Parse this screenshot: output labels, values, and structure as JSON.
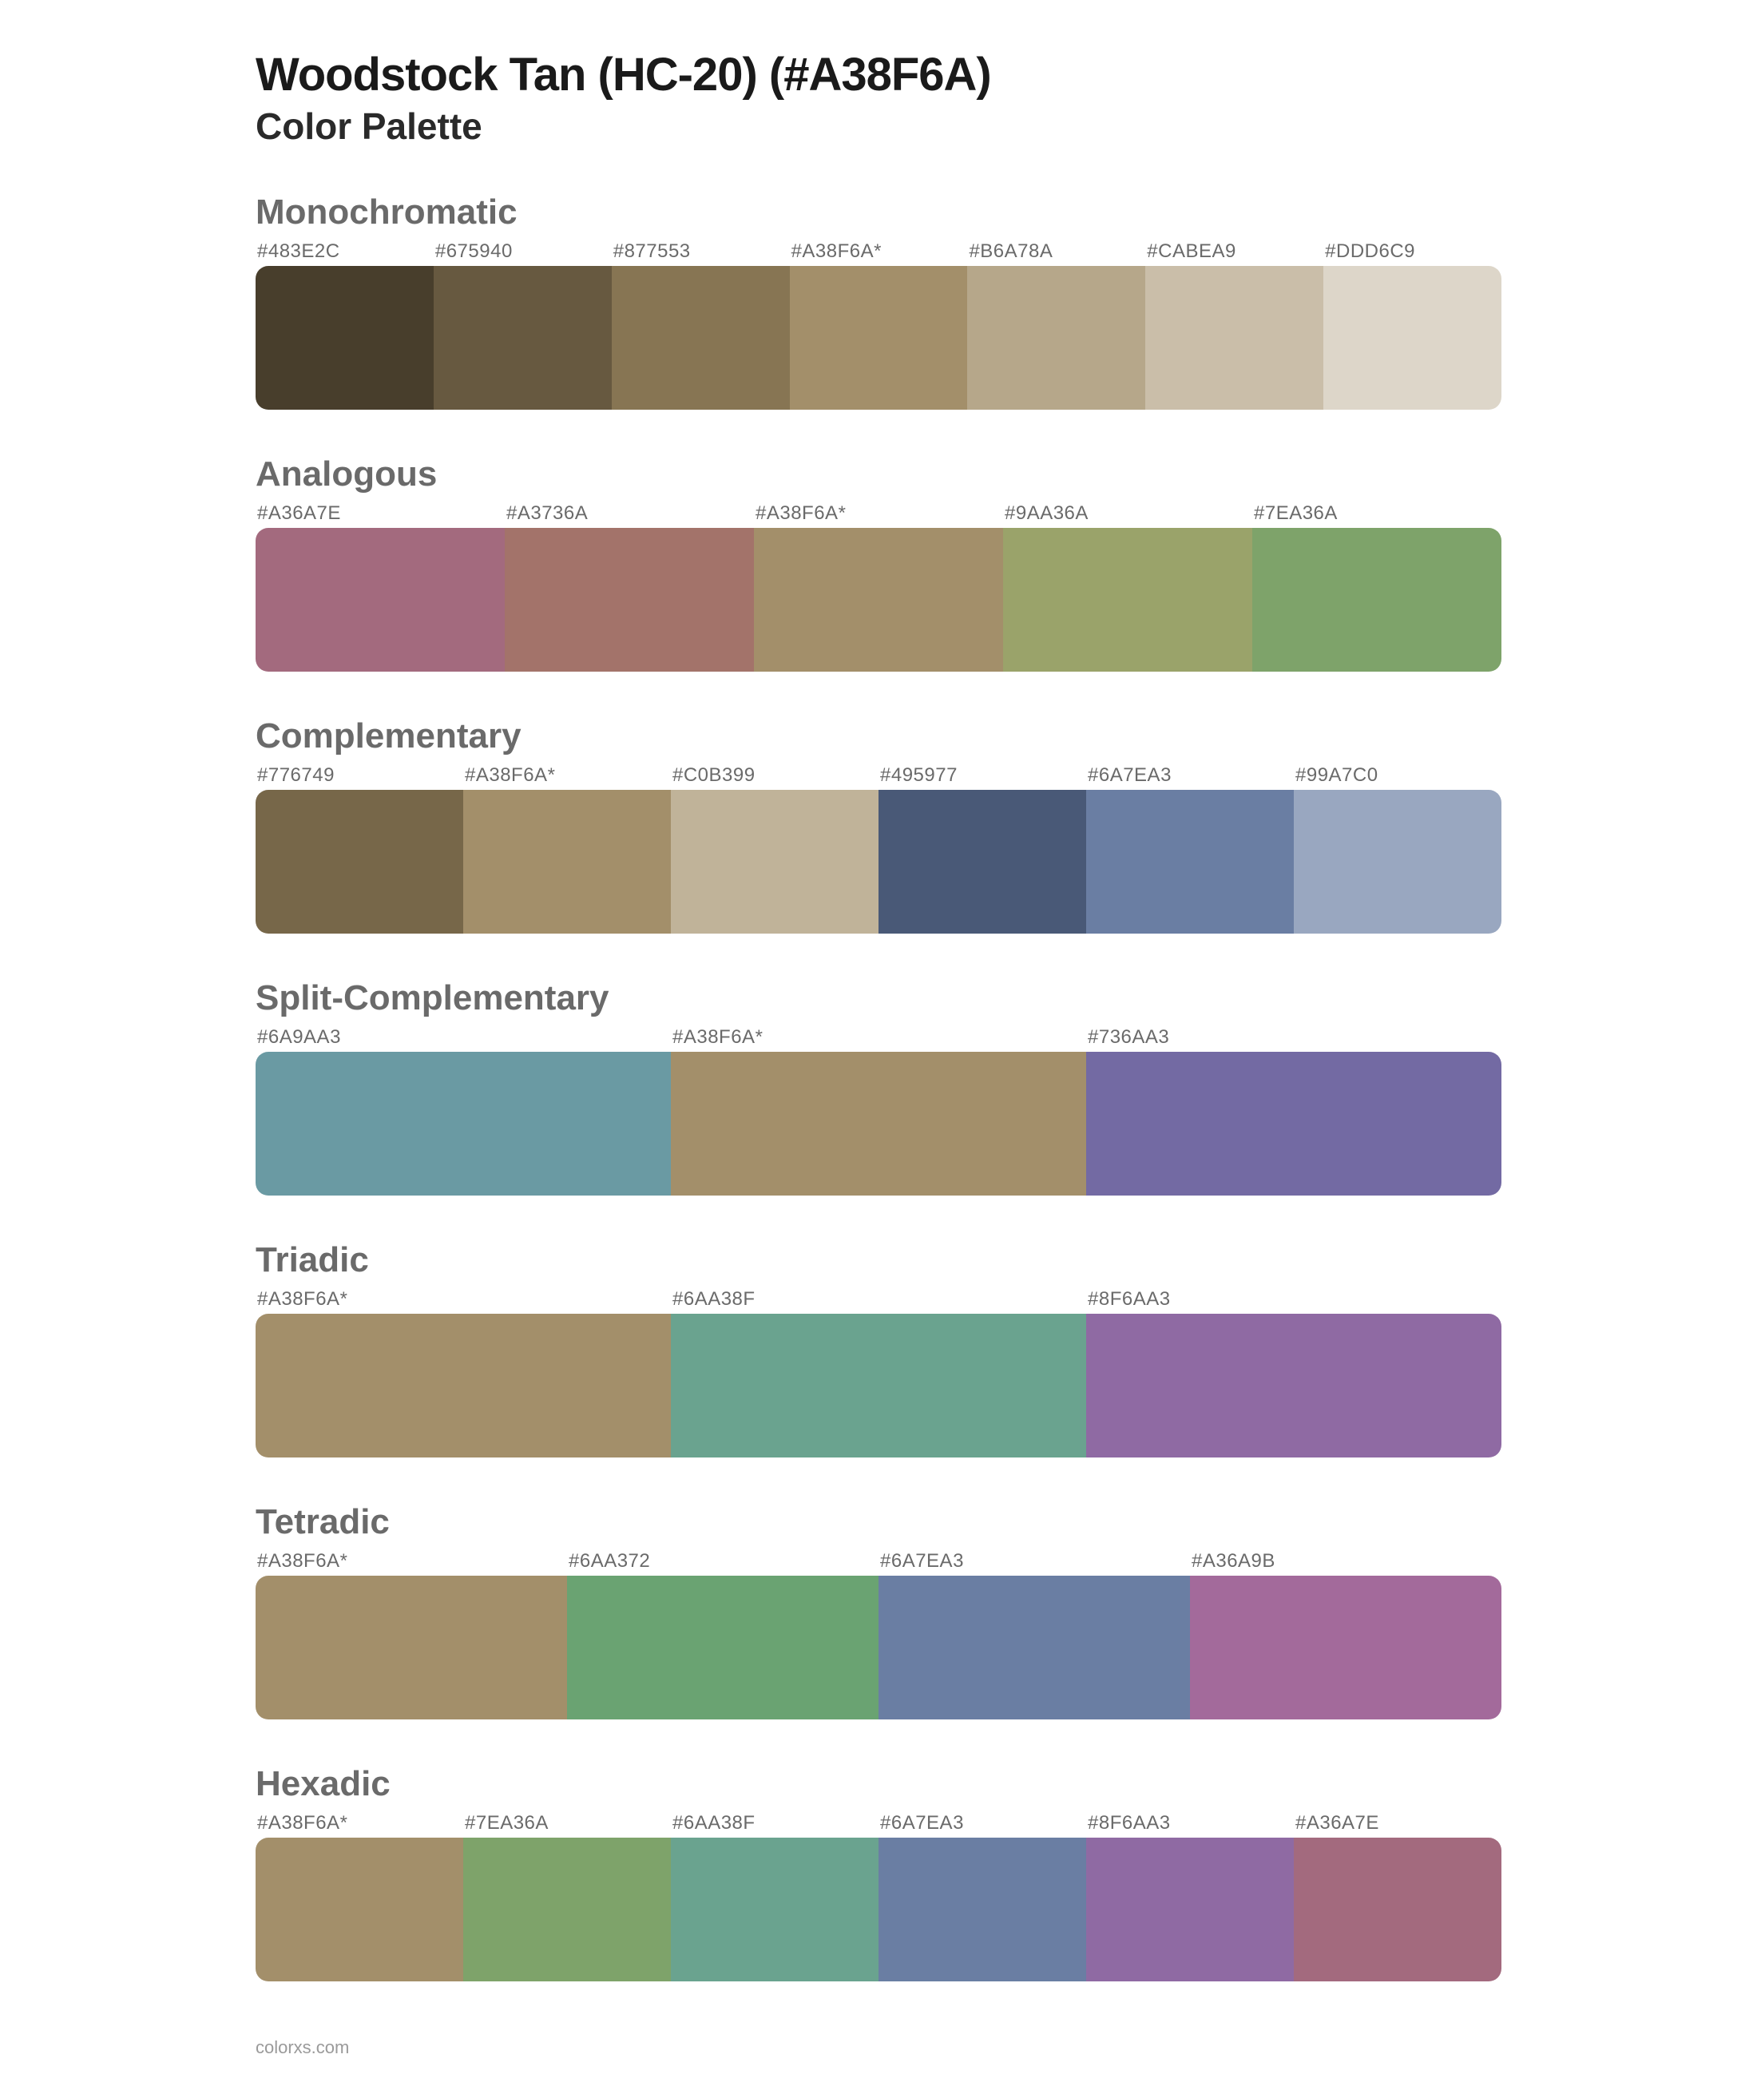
{
  "header": {
    "title": "Woodstock Tan (HC-20) (#A38F6A)",
    "subtitle": "Color Palette"
  },
  "label_fontsize": 24,
  "section_title_fontsize": 44,
  "swatch_height": 180,
  "border_radius": 16,
  "background_color": "#ffffff",
  "sections": [
    {
      "name": "Monochromatic",
      "swatches": [
        {
          "label": "#483E2C",
          "color": "#483E2C"
        },
        {
          "label": "#675940",
          "color": "#675940"
        },
        {
          "label": "#877553",
          "color": "#877553"
        },
        {
          "label": "#A38F6A*",
          "color": "#A38F6A"
        },
        {
          "label": "#B6A78A",
          "color": "#B6A78A"
        },
        {
          "label": "#CABEA9",
          "color": "#CABEA9"
        },
        {
          "label": "#DDD6C9",
          "color": "#DDD6C9"
        }
      ]
    },
    {
      "name": "Analogous",
      "swatches": [
        {
          "label": "#A36A7E",
          "color": "#A36A7E"
        },
        {
          "label": "#A3736A",
          "color": "#A3736A"
        },
        {
          "label": "#A38F6A*",
          "color": "#A38F6A"
        },
        {
          "label": "#9AA36A",
          "color": "#9AA36A"
        },
        {
          "label": "#7EA36A",
          "color": "#7EA36A"
        }
      ]
    },
    {
      "name": "Complementary",
      "swatches": [
        {
          "label": "#776749",
          "color": "#776749"
        },
        {
          "label": "#A38F6A*",
          "color": "#A38F6A"
        },
        {
          "label": "#C0B399",
          "color": "#C0B399"
        },
        {
          "label": "#495977",
          "color": "#495977"
        },
        {
          "label": "#6A7EA3",
          "color": "#6A7EA3"
        },
        {
          "label": "#99A7C0",
          "color": "#99A7C0"
        }
      ]
    },
    {
      "name": "Split-Complementary",
      "swatches": [
        {
          "label": "#6A9AA3",
          "color": "#6A9AA3"
        },
        {
          "label": "#A38F6A*",
          "color": "#A38F6A"
        },
        {
          "label": "#736AA3",
          "color": "#736AA3"
        }
      ]
    },
    {
      "name": "Triadic",
      "swatches": [
        {
          "label": "#A38F6A*",
          "color": "#A38F6A"
        },
        {
          "label": "#6AA38F",
          "color": "#6AA38F"
        },
        {
          "label": "#8F6AA3",
          "color": "#8F6AA3"
        }
      ]
    },
    {
      "name": "Tetradic",
      "swatches": [
        {
          "label": "#A38F6A*",
          "color": "#A38F6A"
        },
        {
          "label": "#6AA372",
          "color": "#6AA372"
        },
        {
          "label": "#6A7EA3",
          "color": "#6A7EA3"
        },
        {
          "label": "#A36A9B",
          "color": "#A36A9B"
        }
      ]
    },
    {
      "name": "Hexadic",
      "swatches": [
        {
          "label": "#A38F6A*",
          "color": "#A38F6A"
        },
        {
          "label": "#7EA36A",
          "color": "#7EA36A"
        },
        {
          "label": "#6AA38F",
          "color": "#6AA38F"
        },
        {
          "label": "#6A7EA3",
          "color": "#6A7EA3"
        },
        {
          "label": "#8F6AA3",
          "color": "#8F6AA3"
        },
        {
          "label": "#A36A7E",
          "color": "#A36A7E"
        }
      ]
    }
  ],
  "footer": "colorxs.com"
}
